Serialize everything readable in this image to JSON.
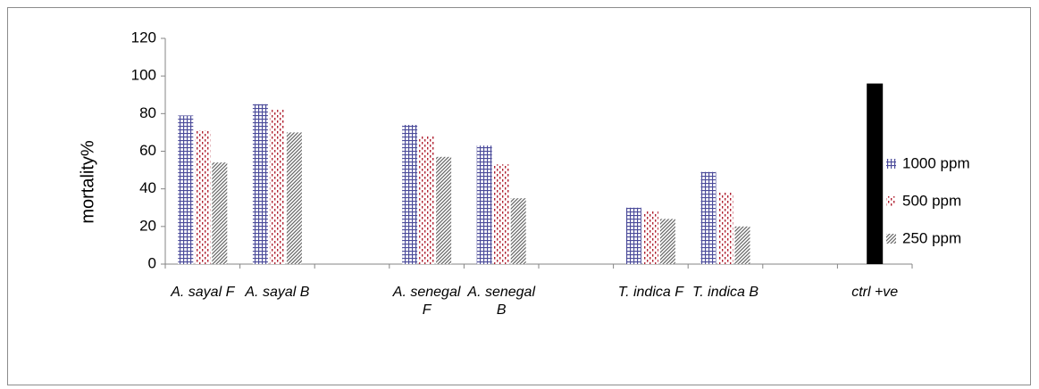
{
  "chart_data": {
    "type": "bar",
    "title": "",
    "xlabel": "",
    "ylabel": "mortality%",
    "ylim": [
      0,
      120
    ],
    "yticks": [
      0,
      20,
      40,
      60,
      80,
      100,
      120
    ],
    "grid": false,
    "legend_position": "right",
    "categories": [
      [
        "A. sayal F"
      ],
      [
        "A. sayal B"
      ],
      [],
      [
        "A. senegal",
        "F"
      ],
      [
        "A. senegal",
        "B"
      ],
      [],
      [
        "T. indica F"
      ],
      [
        "T. indica B"
      ],
      [],
      [
        "ctrl +ve"
      ]
    ],
    "series": [
      {
        "name": "1000 ppm",
        "pattern": "grid",
        "color": "#4b4b9a",
        "values": [
          79,
          85,
          null,
          74,
          63,
          null,
          30,
          49,
          null,
          null
        ]
      },
      {
        "name": "500 ppm",
        "pattern": "dots",
        "color": "#b02030",
        "values": [
          71,
          82,
          null,
          68,
          53,
          null,
          28,
          38,
          null,
          null
        ]
      },
      {
        "name": "250 ppm",
        "pattern": "diagonal",
        "color": "#666666",
        "values": [
          54,
          70,
          null,
          57,
          35,
          null,
          24,
          20,
          null,
          null
        ]
      },
      {
        "name": "",
        "pattern": "solid",
        "color": "#000000",
        "values": [
          null,
          null,
          null,
          null,
          null,
          null,
          null,
          null,
          null,
          96
        ]
      }
    ]
  }
}
